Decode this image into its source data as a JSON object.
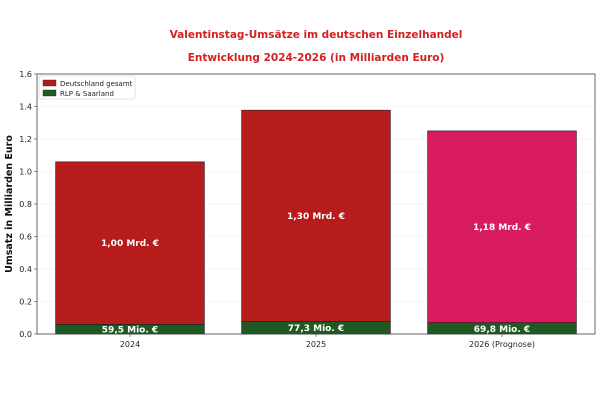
{
  "chart_data": {
    "type": "bar",
    "stacked": true,
    "title": "Valentinstag-Umsätze im deutschen Einzelhandel",
    "subtitle": "Entwicklung 2024-2026 (in Milliarden Euro)",
    "xlabel": "",
    "ylabel": "Umsatz in Milliarden Euro",
    "ylim": [
      0,
      1.6
    ],
    "yticks": [
      "0.0",
      "0.2",
      "0.4",
      "0.6",
      "0.8",
      "1.0",
      "1.2",
      "1.4",
      "1.6"
    ],
    "grid": true,
    "legend_position": "top-left",
    "categories": [
      "2024",
      "2025",
      "2026 (Prognose)"
    ],
    "series": [
      {
        "name": "RLP & Saarland",
        "values": [
          0.0595,
          0.0773,
          0.0698
        ],
        "labels": [
          "59,5 Mio. €",
          "77,3 Mio. €",
          "69,8 Mio. €"
        ],
        "colors": [
          "#1e5a22",
          "#1e5a22",
          "#1e5a22"
        ]
      },
      {
        "name": "Deutschland gesamt",
        "values": [
          1.0,
          1.3,
          1.18
        ],
        "labels": [
          "1,00 Mrd. €",
          "1,30 Mrd. €",
          "1,18 Mrd. €"
        ],
        "colors": [
          "#b71c1c",
          "#b71c1c",
          "#d81b60"
        ]
      }
    ],
    "legend": [
      "Deutschland gesamt",
      "RLP & Saarland"
    ],
    "legend_colors": [
      "#b71c1c",
      "#1e5a22"
    ]
  }
}
